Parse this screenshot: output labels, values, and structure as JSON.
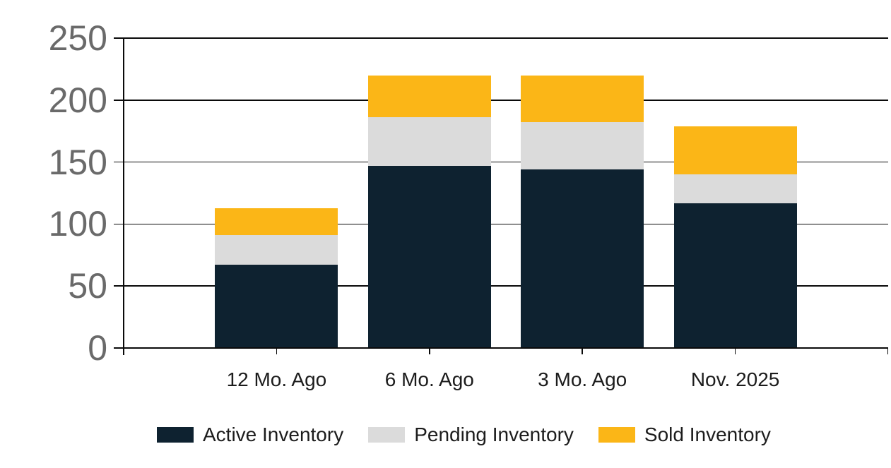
{
  "chart_data": {
    "type": "bar",
    "stacked": true,
    "title": "",
    "xlabel": "",
    "ylabel": "",
    "categories": [
      "12 Mo. Ago",
      "6 Mo. Ago",
      "3 Mo. Ago",
      "Nov. 2025"
    ],
    "series": [
      {
        "name": "Active Inventory",
        "color": "#0e2230",
        "values": [
          67,
          147,
          144,
          117
        ]
      },
      {
        "name": "Pending Inventory",
        "color": "#dbdbdb",
        "values": [
          24,
          39,
          38,
          23
        ]
      },
      {
        "name": "Sold Inventory",
        "color": "#fbb617",
        "values": [
          22,
          34,
          38,
          39
        ]
      }
    ],
    "stack_totals": [
      113,
      220,
      220,
      179
    ],
    "ylim": [
      0,
      250
    ],
    "yticks": [
      0,
      50,
      100,
      150,
      200,
      250
    ],
    "grid": true,
    "legend_position": "bottom"
  },
  "colors": {
    "background": "#ffffff",
    "gridline": "#0a0a0a",
    "y_axis_text": "#6a6a6a",
    "x_axis_text": "#1c1c1c",
    "legend_text": "#1c1c1c"
  }
}
